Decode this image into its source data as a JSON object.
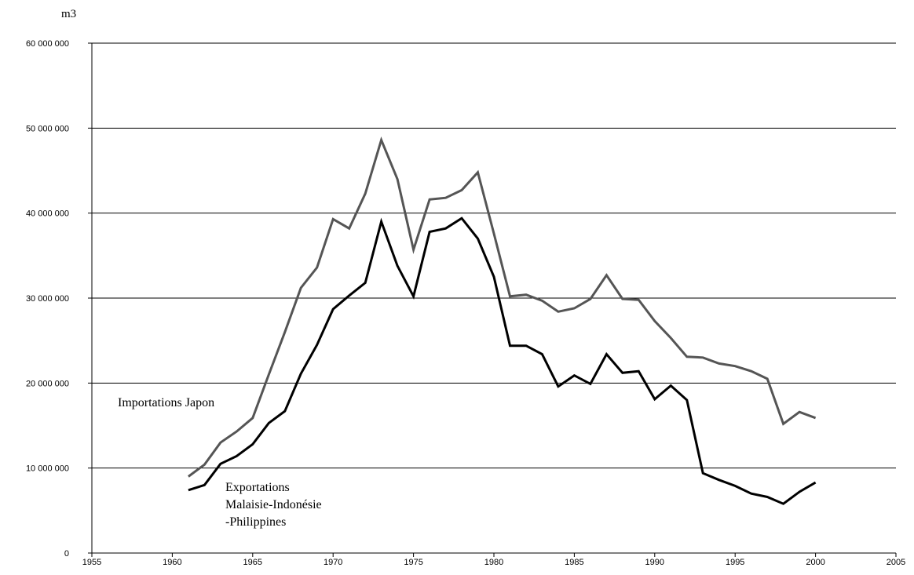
{
  "chart_data": {
    "type": "line",
    "ylabel": "m3",
    "ylim": [
      0,
      60000000
    ],
    "xlim": [
      1955,
      2005
    ],
    "yticks": [
      0,
      10000000,
      20000000,
      30000000,
      40000000,
      50000000,
      60000000
    ],
    "ytick_labels": [
      "0",
      "10 000 000",
      "20 000 000",
      "30 000 000",
      "40 000 000",
      "50 000 000",
      "60 000 000"
    ],
    "xticks": [
      1955,
      1960,
      1965,
      1970,
      1975,
      1980,
      1985,
      1990,
      1995,
      2000,
      2005
    ],
    "xtick_labels": [
      "1955",
      "1960",
      "1965",
      "1970",
      "1975",
      "1980",
      "1985",
      "1990",
      "1995",
      "2000",
      "2005"
    ],
    "grid": "horizontal",
    "x": [
      1961,
      1962,
      1963,
      1964,
      1965,
      1966,
      1967,
      1968,
      1969,
      1970,
      1971,
      1972,
      1973,
      1974,
      1975,
      1976,
      1977,
      1978,
      1979,
      1980,
      1981,
      1982,
      1983,
      1984,
      1985,
      1986,
      1987,
      1988,
      1989,
      1990,
      1991,
      1992,
      1993,
      1994,
      1995,
      1996,
      1997,
      1998,
      1999,
      2000
    ],
    "series": [
      {
        "name": "Importations Japon",
        "color": "#555555",
        "values": [
          9000000,
          10400000,
          13000000,
          14300000,
          15900000,
          21000000,
          26000000,
          31200000,
          33600000,
          39300000,
          38200000,
          42300000,
          48600000,
          44000000,
          35700000,
          41600000,
          41800000,
          42700000,
          44800000,
          37600000,
          30200000,
          30400000,
          29700000,
          28400000,
          28800000,
          29900000,
          32700000,
          29900000,
          29800000,
          27300000,
          25300000,
          23100000,
          23000000,
          22300000,
          22000000,
          21400000,
          20500000,
          15200000,
          16600000,
          15900000
        ]
      },
      {
        "name": "Exportations Malaisie-Indonésie -Philippines",
        "color": "#000000",
        "values": [
          7400000,
          8000000,
          10500000,
          11400000,
          12800000,
          15300000,
          16700000,
          21100000,
          24500000,
          28700000,
          30300000,
          31800000,
          39000000,
          33800000,
          30200000,
          37800000,
          38200000,
          39400000,
          37000000,
          32500000,
          24400000,
          24400000,
          23400000,
          19600000,
          20900000,
          19900000,
          23400000,
          21200000,
          21400000,
          18100000,
          19700000,
          18000000,
          9400000,
          8600000,
          7900000,
          7000000,
          6600000,
          5800000,
          7200000,
          8300000
        ]
      }
    ],
    "annotations": [
      {
        "lines": [
          "Importations Japon"
        ]
      },
      {
        "lines": [
          "Exportations",
          "Malaisie-Indonésie",
          "-Philippines"
        ]
      }
    ]
  }
}
